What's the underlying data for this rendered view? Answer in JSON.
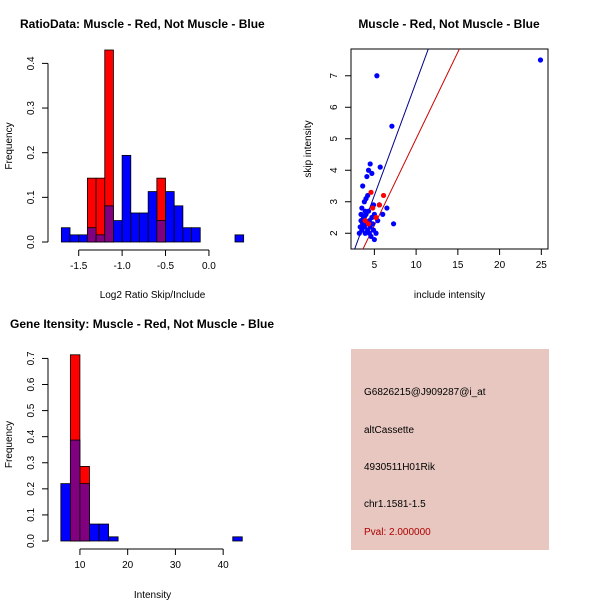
{
  "chart_data": [
    {
      "id": "ratio-hist",
      "type": "bar",
      "title": "RatioData: Muscle - Red, Not Muscle - Blue",
      "xlabel": "Log2 Ratio Skip/Include",
      "ylabel": "Frequency",
      "xlim": [
        -1.75,
        0.45
      ],
      "ylim": [
        0,
        0.43
      ],
      "xticks": [
        -1.5,
        -1.0,
        -0.5,
        0.0
      ],
      "xtick_labels": [
        "-1.5",
        "-1.0",
        "-0.5",
        "0.0"
      ],
      "yticks": [
        0.0,
        0.1,
        0.2,
        0.3,
        0.4
      ],
      "ytick_labels": [
        "0.0",
        "0.1",
        "0.2",
        "0.3",
        "0.4"
      ],
      "bin_width": 0.1,
      "series": [
        {
          "name": "Muscle",
          "color": "#ff0000",
          "bins": [
            {
              "start": -1.4,
              "value": 0.143
            },
            {
              "start": -1.3,
              "value": 0.143
            },
            {
              "start": -1.2,
              "value": 0.43
            },
            {
              "start": -0.6,
              "value": 0.143
            }
          ]
        },
        {
          "name": "Not Muscle",
          "color": "#0000ff",
          "bins": [
            {
              "start": -1.7,
              "value": 0.032
            },
            {
              "start": -1.6,
              "value": 0.016
            },
            {
              "start": -1.5,
              "value": 0.016
            },
            {
              "start": -1.4,
              "value": 0.032
            },
            {
              "start": -1.3,
              "value": 0.016
            },
            {
              "start": -1.2,
              "value": 0.081
            },
            {
              "start": -1.1,
              "value": 0.048
            },
            {
              "start": -1.0,
              "value": 0.194
            },
            {
              "start": -0.9,
              "value": 0.065
            },
            {
              "start": -0.8,
              "value": 0.065
            },
            {
              "start": -0.7,
              "value": 0.113
            },
            {
              "start": -0.6,
              "value": 0.048
            },
            {
              "start": -0.5,
              "value": 0.113
            },
            {
              "start": -0.4,
              "value": 0.081
            },
            {
              "start": -0.3,
              "value": 0.032
            },
            {
              "start": -0.2,
              "value": 0.032
            },
            {
              "start": 0.3,
              "value": 0.016
            }
          ]
        }
      ]
    },
    {
      "id": "intensity-scatter",
      "type": "scatter",
      "title": "Muscle - Red, Not Muscle - Blue",
      "xlabel": "include intensity",
      "ylabel": "skip intensity",
      "xlim": [
        2.2,
        25.8
      ],
      "ylim": [
        1.5,
        7.85
      ],
      "xticks": [
        5,
        10,
        15,
        20,
        25
      ],
      "xtick_labels": [
        "5",
        "10",
        "15",
        "20",
        "25"
      ],
      "yticks": [
        2,
        3,
        4,
        5,
        6,
        7
      ],
      "ytick_labels": [
        "2",
        "3",
        "4",
        "5",
        "6",
        "7"
      ],
      "fit_lines": [
        {
          "name": "Not Muscle fit",
          "color": "#00008b",
          "intercept": -0.4,
          "slope": 0.72
        },
        {
          "name": "Muscle fit",
          "color": "#cc0000",
          "intercept": -0.5,
          "slope": 0.55
        }
      ],
      "series": [
        {
          "name": "Not Muscle",
          "color": "#0000ff",
          "points": [
            [
              3.2,
              2.0
            ],
            [
              3.3,
              2.2
            ],
            [
              3.4,
              2.4
            ],
            [
              3.5,
              2.1
            ],
            [
              3.6,
              2.3
            ],
            [
              3.7,
              2.5
            ],
            [
              3.8,
              2.2
            ],
            [
              3.9,
              2.0
            ],
            [
              4.0,
              2.6
            ],
            [
              4.1,
              2.3
            ],
            [
              4.2,
              2.1
            ],
            [
              4.3,
              2.7
            ],
            [
              4.4,
              2.4
            ],
            [
              4.5,
              2.2
            ],
            [
              4.6,
              1.9
            ],
            [
              4.7,
              2.5
            ],
            [
              4.8,
              2.3
            ],
            [
              4.9,
              2.1
            ],
            [
              5.0,
              2.6
            ],
            [
              3.5,
              2.8
            ],
            [
              3.8,
              3.0
            ],
            [
              4.0,
              3.1
            ],
            [
              4.2,
              3.2
            ],
            [
              3.6,
              3.5
            ],
            [
              4.1,
              3.8
            ],
            [
              4.3,
              4.0
            ],
            [
              4.5,
              4.2
            ],
            [
              4.7,
              3.9
            ],
            [
              5.0,
              1.8
            ],
            [
              5.2,
              2.0
            ],
            [
              5.4,
              2.4
            ],
            [
              5.6,
              2.9
            ],
            [
              6.0,
              2.6
            ],
            [
              6.5,
              2.8
            ],
            [
              5.7,
              4.1
            ],
            [
              5.3,
              7.0
            ],
            [
              7.1,
              5.4
            ],
            [
              7.3,
              2.3
            ],
            [
              4.9,
              2.9
            ],
            [
              3.4,
              2.6
            ],
            [
              3.9,
              2.7
            ],
            [
              4.4,
              2.0
            ],
            [
              24.9,
              7.5
            ]
          ]
        },
        {
          "name": "Muscle",
          "color": "#ff0000",
          "points": [
            [
              3.9,
              2.4
            ],
            [
              4.6,
              3.3
            ],
            [
              5.2,
              2.5
            ],
            [
              5.6,
              2.9
            ],
            [
              6.1,
              3.2
            ],
            [
              4.3,
              2.3
            ],
            [
              4.8,
              2.8
            ]
          ]
        }
      ]
    },
    {
      "id": "intensity-hist",
      "type": "bar",
      "title": "Gene Itensity: Muscle - Red, Not Muscle - Blue",
      "xlabel": "Intensity",
      "ylabel": "Frequency",
      "xlim": [
        5.2,
        45.2
      ],
      "ylim": [
        0,
        0.74
      ],
      "xticks": [
        10,
        20,
        30,
        40
      ],
      "xtick_labels": [
        "10",
        "20",
        "30",
        "40"
      ],
      "yticks": [
        0.0,
        0.1,
        0.2,
        0.3,
        0.4,
        0.5,
        0.6,
        0.7
      ],
      "ytick_labels": [
        "0.0",
        "0.1",
        "0.2",
        "0.3",
        "0.4",
        "0.5",
        "0.6",
        "0.7"
      ],
      "bin_width": 2,
      "series": [
        {
          "name": "Muscle",
          "color": "#ff0000",
          "bins": [
            {
              "start": 8,
              "value": 0.714
            },
            {
              "start": 10,
              "value": 0.286
            }
          ]
        },
        {
          "name": "Not Muscle",
          "color": "#0000ff",
          "bins": [
            {
              "start": 6,
              "value": 0.22
            },
            {
              "start": 8,
              "value": 0.387
            },
            {
              "start": 10,
              "value": 0.22
            },
            {
              "start": 12,
              "value": 0.065
            },
            {
              "start": 14,
              "value": 0.065
            },
            {
              "start": 16,
              "value": 0.016
            },
            {
              "start": 42,
              "value": 0.016
            }
          ]
        }
      ]
    }
  ],
  "info_box": {
    "probe_id": "G6826215@J909287@i_at",
    "event_type": "altCassette",
    "gene_name": "4930511H01Rik",
    "location": "chr1.1581-1.5",
    "pval": "Pval: 2.000000",
    "background": "#e7c7c0",
    "pval_color": "#b00000"
  }
}
